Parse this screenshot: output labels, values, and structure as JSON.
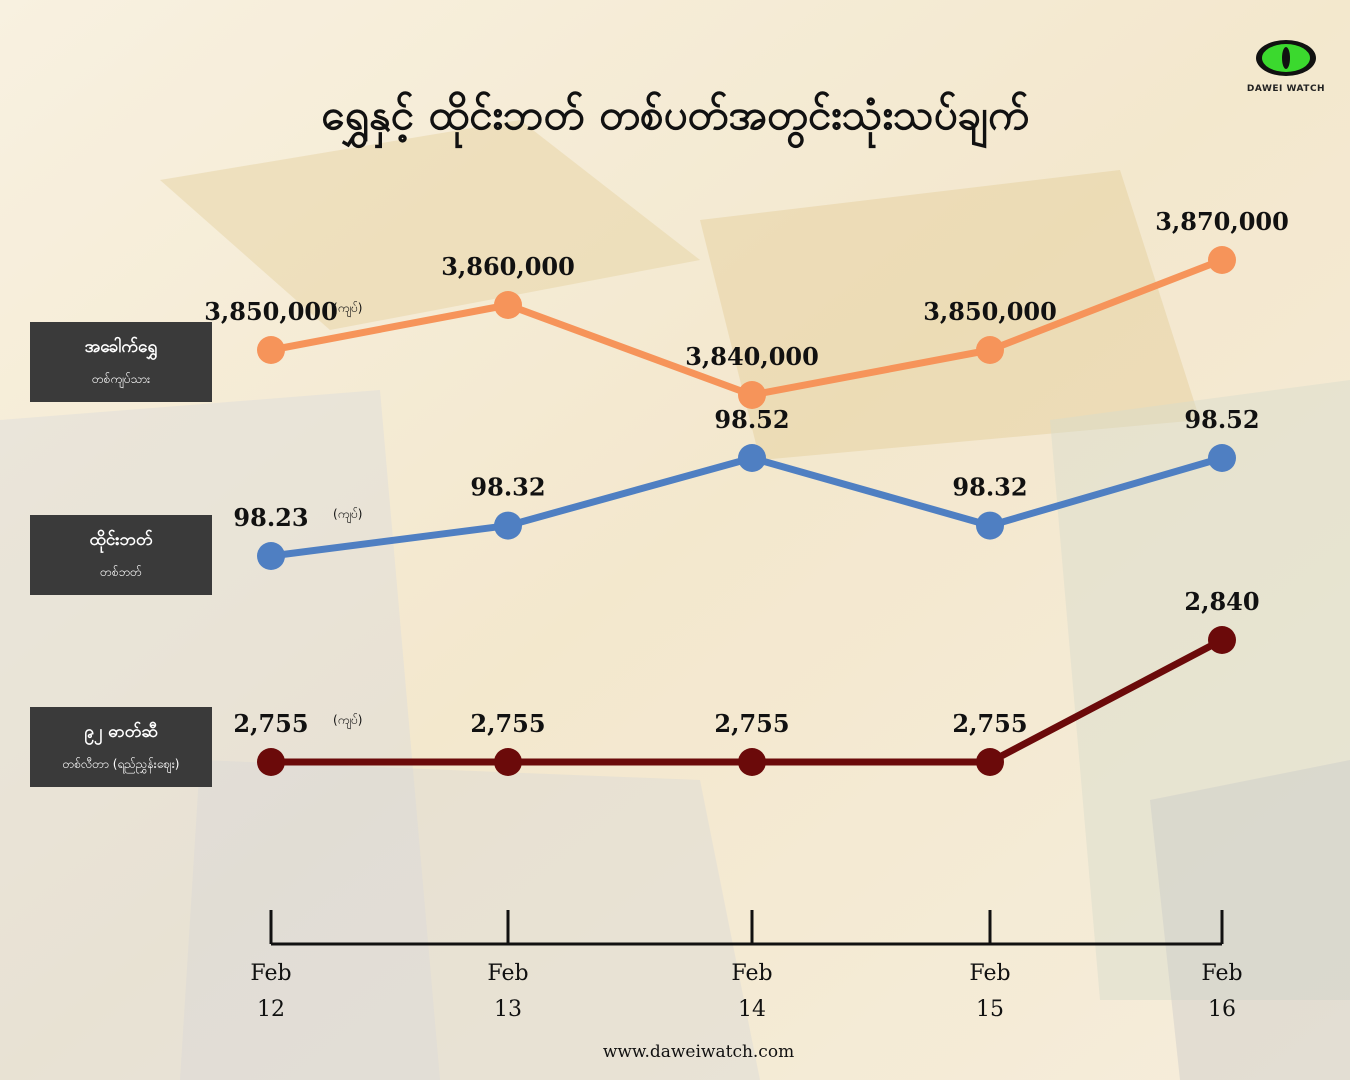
{
  "title": "ရွှေနှင့် ထိုင်းဘတ် တစ်ပတ်အတွင်းသုံးသပ်ချက်",
  "logo": {
    "brand": "DAWEI WATCH",
    "icon": "green-eye-icon"
  },
  "website": "www.daweiwatch.com",
  "chart_data": {
    "type": "line",
    "x": [
      "Feb 12",
      "Feb 13",
      "Feb 14",
      "Feb 15",
      "Feb 16"
    ],
    "x_ticks": [
      [
        "Feb",
        "12"
      ],
      [
        "Feb",
        "13"
      ],
      [
        "Feb",
        "14"
      ],
      [
        "Feb",
        "15"
      ],
      [
        "Feb",
        "16"
      ]
    ],
    "series": [
      {
        "name": "အခေါက်ရွှေ",
        "unit_label": "တစ်ကျပ်သား",
        "color": "#f6945a",
        "values": [
          3850000,
          3860000,
          3840000,
          3850000,
          3870000
        ],
        "labels": [
          "3,850,000",
          "3,860,000",
          "3,840,000",
          "3,850,000",
          "3,870,000"
        ]
      },
      {
        "name": "ထိုင်းဘတ်",
        "unit_label": "တစ်ဘတ်",
        "color": "#4f7fc2",
        "values": [
          98.23,
          98.32,
          98.52,
          98.32,
          98.52
        ],
        "labels": [
          "98.23",
          "98.32",
          "98.52",
          "98.32",
          "98.52"
        ]
      },
      {
        "name": "၉၂ ဓာတ်ဆီ",
        "unit_label": "တစ်လီတာ (ရည်ညွှန်းဈေး)",
        "color": "#6b0a0a",
        "values": [
          2755,
          2755,
          2755,
          2755,
          2840
        ],
        "labels": [
          "2,755",
          "2,755",
          "2,755",
          "2,755",
          "2,840"
        ]
      }
    ],
    "unit_suffix": "(ကျပ်)"
  },
  "colors": {
    "legend_bg": "#3a3a3a",
    "axis": "#111111"
  }
}
